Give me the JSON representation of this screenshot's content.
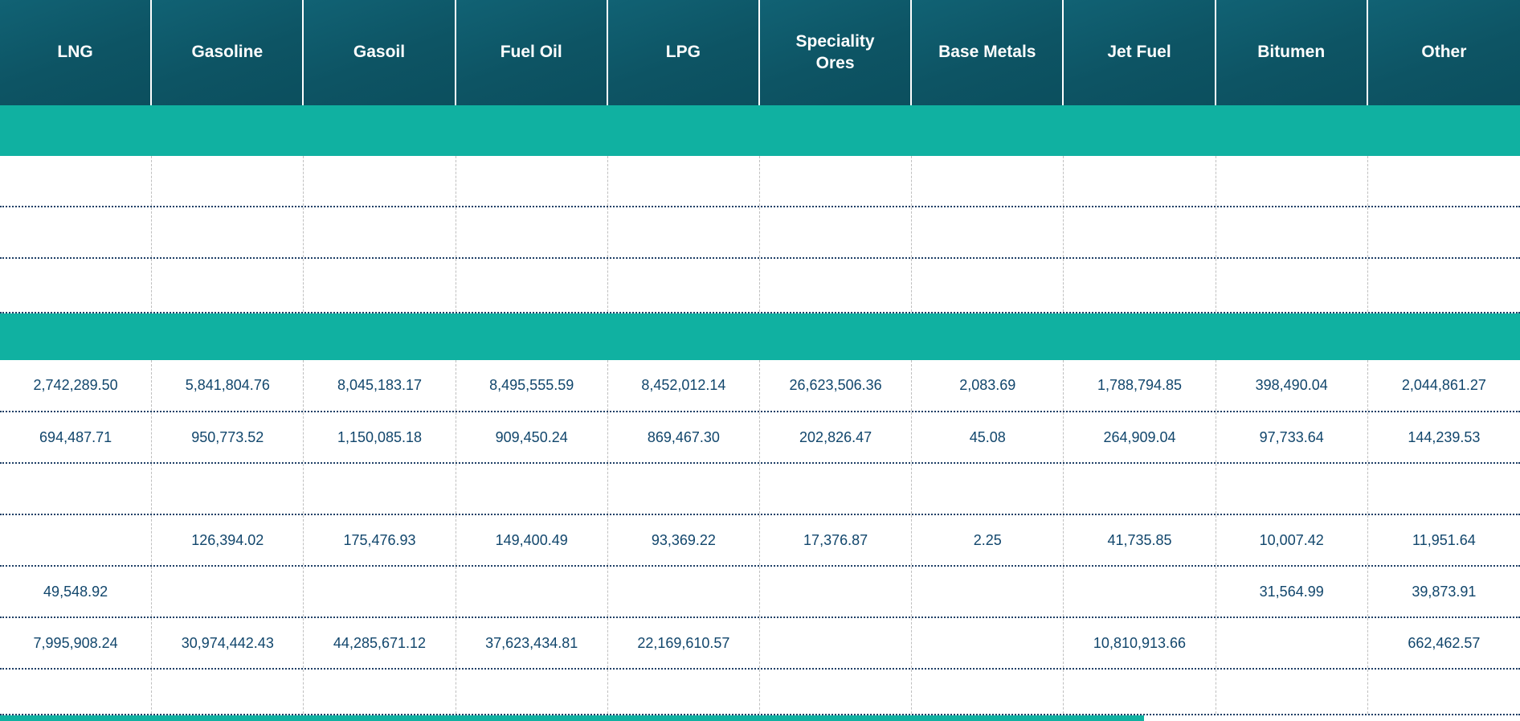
{
  "header": {
    "columns": [
      "LNG",
      "Gasoline",
      "Gasoil",
      "Fuel Oil",
      "LPG",
      "Speciality Ores",
      "Base Metals",
      "Jet Fuel",
      "Bitumen",
      "Other"
    ]
  },
  "body": {
    "rows": [
      {
        "kind": "band",
        "cells": [
          "",
          "",
          "",
          "",
          "",
          "",
          "",
          "",
          "",
          ""
        ]
      },
      {
        "kind": "data",
        "cells": [
          "",
          "",
          "",
          "",
          "",
          "",
          "",
          "",
          "",
          ""
        ]
      },
      {
        "kind": "data",
        "cells": [
          "",
          "",
          "",
          "",
          "",
          "",
          "",
          "",
          "",
          ""
        ]
      },
      {
        "kind": "data",
        "cells": [
          "",
          "",
          "",
          "",
          "",
          "",
          "",
          "",
          "",
          ""
        ]
      },
      {
        "kind": "band",
        "cells": [
          "",
          "",
          "",
          "",
          "",
          "",
          "",
          "",
          "",
          ""
        ]
      },
      {
        "kind": "data",
        "cells": [
          "2,742,289.50",
          "5,841,804.76",
          "8,045,183.17",
          "8,495,555.59",
          "8,452,012.14",
          "26,623,506.36",
          "2,083.69",
          "1,788,794.85",
          "398,490.04",
          "2,044,861.27"
        ]
      },
      {
        "kind": "data",
        "cells": [
          "694,487.71",
          "950,773.52",
          "1,150,085.18",
          "909,450.24",
          "869,467.30",
          "202,826.47",
          "45.08",
          "264,909.04",
          "97,733.64",
          "144,239.53"
        ]
      },
      {
        "kind": "data",
        "cells": [
          "",
          "",
          "",
          "",
          "",
          "",
          "",
          "",
          "",
          ""
        ]
      },
      {
        "kind": "data",
        "cells": [
          "",
          "126,394.02",
          "175,476.93",
          "149,400.49",
          "93,369.22",
          "17,376.87",
          "2.25",
          "41,735.85",
          "10,007.42",
          "11,951.64"
        ]
      },
      {
        "kind": "data",
        "cells": [
          "49,548.92",
          "",
          "",
          "",
          "",
          "",
          "",
          "",
          "31,564.99",
          "39,873.91"
        ]
      },
      {
        "kind": "data",
        "cells": [
          "7,995,908.24",
          "30,974,442.43",
          "44,285,671.12",
          "37,623,434.81",
          "22,169,610.57",
          "",
          "",
          "10,810,913.66",
          "",
          "662,462.57"
        ]
      },
      {
        "kind": "data",
        "cells": [
          "",
          "",
          "",
          "",
          "",
          "",
          "",
          "",
          "",
          ""
        ]
      }
    ]
  },
  "colors": {
    "header_bg": "#0d5464",
    "band": "#10b1a1",
    "cell_text": "#11466c",
    "row_divider": "#1e3f66",
    "col_divider": "#bfbfbf",
    "scrollbar_thumb": "#10b1a1"
  }
}
